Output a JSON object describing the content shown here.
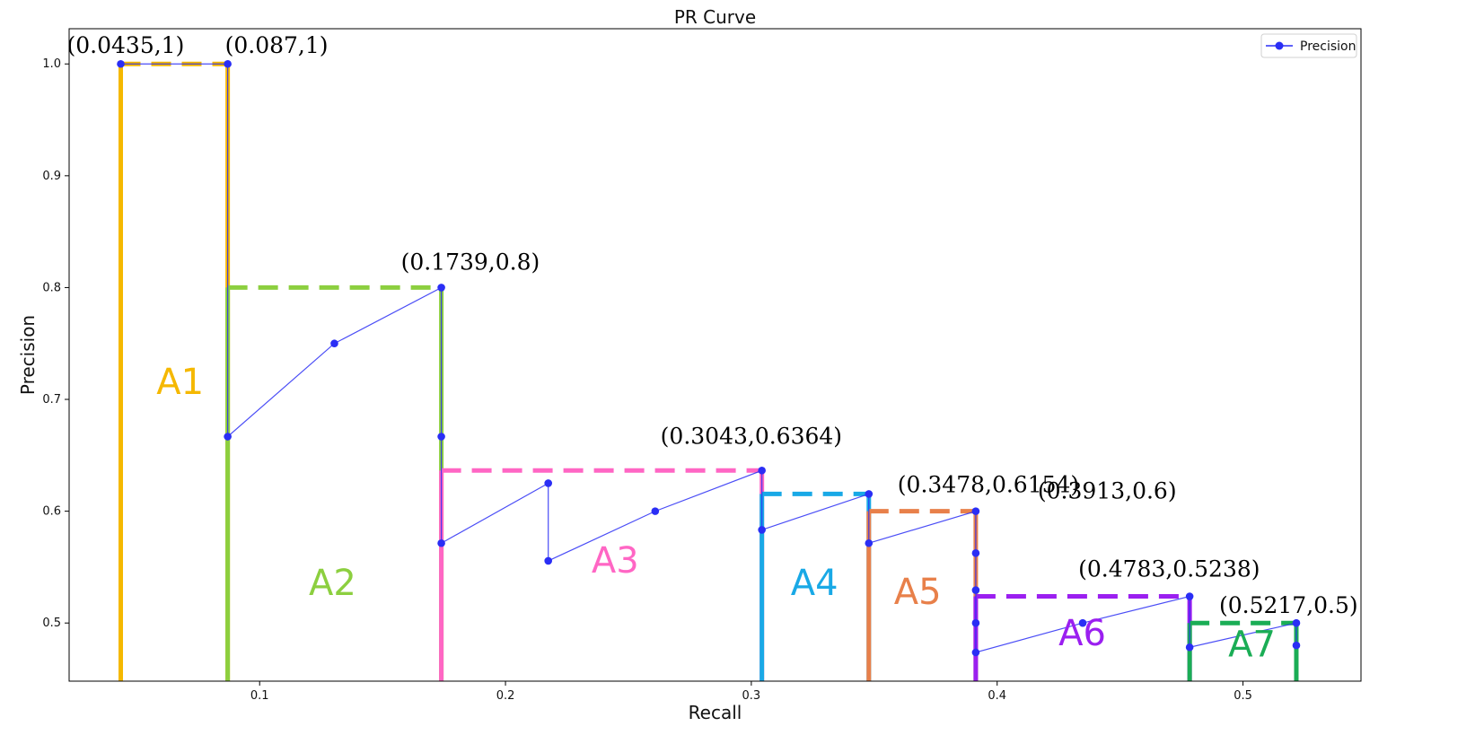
{
  "chart_data": {
    "type": "line",
    "title": "PR Curve",
    "xlabel": "Recall",
    "ylabel": "Precision",
    "xlim": [
      0.0225,
      0.548
    ],
    "ylim": [
      0.448,
      1.0315
    ],
    "xticks": [
      0.1,
      0.2,
      0.3,
      0.4,
      0.5
    ],
    "xtick_labels": [
      "0.1",
      "0.2",
      "0.3",
      "0.4",
      "0.5"
    ],
    "yticks": [
      0.5,
      0.6,
      0.7,
      0.8,
      0.9,
      1.0
    ],
    "ytick_labels": [
      "0.5",
      "0.6",
      "0.7",
      "0.8",
      "0.9",
      "1.0"
    ],
    "grid": false,
    "legend_position": "top-right",
    "series": [
      {
        "name": "Precision",
        "color": "#2a2ef5",
        "points": [
          [
            0.0435,
            1.0
          ],
          [
            0.087,
            1.0
          ],
          [
            0.087,
            0.6667
          ],
          [
            0.1304,
            0.75
          ],
          [
            0.1739,
            0.8
          ],
          [
            0.1739,
            0.6667
          ],
          [
            0.1739,
            0.5714
          ],
          [
            0.2174,
            0.625
          ],
          [
            0.2174,
            0.5556
          ],
          [
            0.2609,
            0.6
          ],
          [
            0.3043,
            0.6364
          ],
          [
            0.3043,
            0.5833
          ],
          [
            0.3478,
            0.6154
          ],
          [
            0.3478,
            0.5714
          ],
          [
            0.3913,
            0.6
          ],
          [
            0.3913,
            0.5625
          ],
          [
            0.3913,
            0.5294
          ],
          [
            0.3913,
            0.5
          ],
          [
            0.3913,
            0.4737
          ],
          [
            0.4348,
            0.5
          ],
          [
            0.4783,
            0.5238
          ],
          [
            0.4783,
            0.4783
          ],
          [
            0.5217,
            0.5
          ],
          [
            0.5217,
            0.48
          ]
        ]
      }
    ],
    "annotations": [
      {
        "text": "(0.0435,1)",
        "x": 0.0435,
        "y": 1.0
      },
      {
        "text": "(0.087,1)",
        "x": 0.087,
        "y": 1.0
      },
      {
        "text": "(0.1739,0.8)",
        "x": 0.1739,
        "y": 0.8
      },
      {
        "text": "(0.3043,0.6364)",
        "x": 0.3043,
        "y": 0.6364
      },
      {
        "text": "(0.3478,0.6154)",
        "x": 0.3478,
        "y": 0.6154
      },
      {
        "text": "(0.3913,0.6)",
        "x": 0.3913,
        "y": 0.6
      },
      {
        "text": "(0.4783,0.5238)",
        "x": 0.4783,
        "y": 0.5238
      },
      {
        "text": "(0.5217,0.5)",
        "x": 0.5217,
        "y": 0.5
      }
    ],
    "areas": [
      {
        "label": "A1",
        "color": "#f5b800",
        "x0": 0.0435,
        "x1": 0.087,
        "precision": 1.0
      },
      {
        "label": "A2",
        "color": "#8ccf3f",
        "x0": 0.087,
        "x1": 0.1739,
        "precision": 0.8
      },
      {
        "label": "A3",
        "color": "#ff66c4",
        "x0": 0.1739,
        "x1": 0.3043,
        "precision": 0.6364
      },
      {
        "label": "A4",
        "color": "#19a9e6",
        "x0": 0.3043,
        "x1": 0.3478,
        "precision": 0.6154
      },
      {
        "label": "A5",
        "color": "#e8804a",
        "x0": 0.3478,
        "x1": 0.3913,
        "precision": 0.6
      },
      {
        "label": "A6",
        "color": "#9b1ff0",
        "x0": 0.3913,
        "x1": 0.4783,
        "precision": 0.5238
      },
      {
        "label": "A7",
        "color": "#1aad55",
        "x0": 0.4783,
        "x1": 0.5217,
        "precision": 0.5
      }
    ]
  }
}
